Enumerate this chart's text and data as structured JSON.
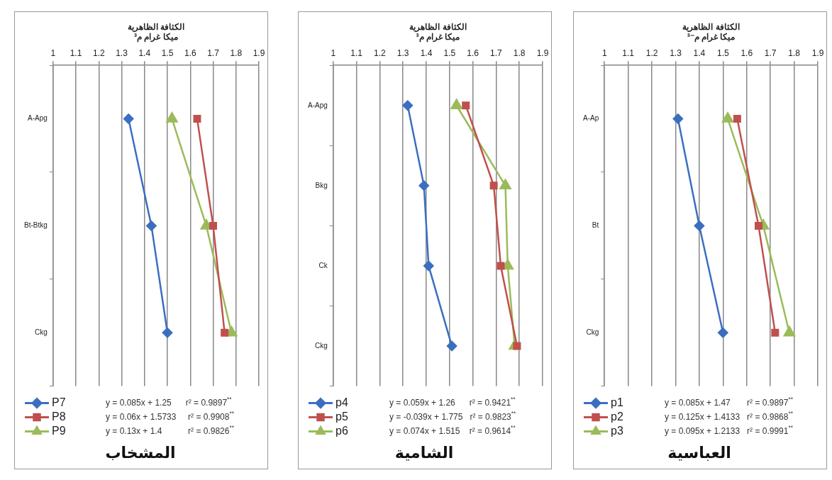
{
  "chart_data": [
    {
      "type": "line",
      "orientation": "horizontal",
      "title": "المشخاب",
      "xlabel": "الكثافة الظاهرية\nميكا غرام م³",
      "categories": [
        "A-Apg",
        "Bt-Btkg",
        "Ckg"
      ],
      "series": [
        {
          "name": "P7",
          "color": "#3a6fc0",
          "marker": "diamond",
          "values": [
            1.33,
            1.43,
            1.5
          ]
        },
        {
          "name": "P8",
          "color": "#c0504d",
          "marker": "square",
          "values": [
            1.63,
            1.7,
            1.75
          ]
        },
        {
          "name": "P9",
          "color": "#9bbb59",
          "marker": "triangle",
          "values": [
            1.52,
            1.67,
            1.78
          ]
        }
      ],
      "xlim": [
        1,
        1.9
      ],
      "xticks": [
        1,
        1.1,
        1.2,
        1.3,
        1.4,
        1.5,
        1.6,
        1.7,
        1.8,
        1.9
      ],
      "grid": "x",
      "legend": "bottom left",
      "annotations": [
        "y = 0.085x + 1.25      r² = 0.9897$^{**}$",
        "y = 0.06x + 1.5733     r² = 0.9908$^{**}$",
        "y = 0.13x + 1.4           r² = 0.9826$^{**}$"
      ]
    },
    {
      "type": "line",
      "orientation": "horizontal",
      "title": "الشامية",
      "xlabel": "الكثافة الظاهرية\nميكا غرام م³",
      "categories": [
        "A-Apg",
        "Bkg",
        "Ck",
        "Ckg"
      ],
      "series": [
        {
          "name": "p4",
          "color": "#3a6fc0",
          "marker": "diamond",
          "values": [
            1.32,
            1.39,
            1.41,
            1.51
          ]
        },
        {
          "name": "p5",
          "color": "#c0504d",
          "marker": "square",
          "values": [
            1.57,
            1.69,
            1.72,
            1.79
          ]
        },
        {
          "name": "p6",
          "color": "#9bbb59",
          "marker": "triangle",
          "values": [
            1.53,
            1.74,
            1.75,
            1.78
          ]
        }
      ],
      "xlim": [
        1,
        1.9
      ],
      "xticks": [
        1,
        1.1,
        1.2,
        1.3,
        1.4,
        1.5,
        1.6,
        1.7,
        1.8,
        1.9
      ],
      "grid": "x",
      "legend": "bottom left",
      "annotations": [
        "y = 0.059x + 1.26      r² = 0.9421$^{**}$",
        "y = -0.039x + 1.775   r² = 0.9823$^{**}$",
        "y = 0.074x + 1.515    r² = 0.9614$^{**}$"
      ]
    },
    {
      "type": "line",
      "orientation": "horizontal",
      "title": "العباسية",
      "xlabel": "الكثافة الظاهرية\nميكا غرام م⁻³",
      "categories": [
        "A-Ap",
        "Bt",
        "Ckg"
      ],
      "series": [
        {
          "name": "p1",
          "color": "#3a6fc0",
          "marker": "diamond",
          "values": [
            1.31,
            1.4,
            1.5
          ]
        },
        {
          "name": "p2",
          "color": "#c0504d",
          "marker": "square",
          "values": [
            1.56,
            1.65,
            1.72
          ]
        },
        {
          "name": "p3",
          "color": "#9bbb59",
          "marker": "triangle",
          "values": [
            1.52,
            1.67,
            1.78
          ]
        }
      ],
      "xlim": [
        1,
        1.9
      ],
      "xticks": [
        1,
        1.1,
        1.2,
        1.3,
        1.4,
        1.5,
        1.6,
        1.7,
        1.8,
        1.9
      ],
      "grid": "x",
      "legend": "bottom left",
      "annotations": [
        "y = 0.085x + 1.47       r² = 0.9897$^{**}$",
        "y = 0.125x + 1.4133   r² = 0.9868$^{**}$",
        "y = 0.095x + 1.2133   r² = 0.9991$^{**}$"
      ]
    }
  ]
}
